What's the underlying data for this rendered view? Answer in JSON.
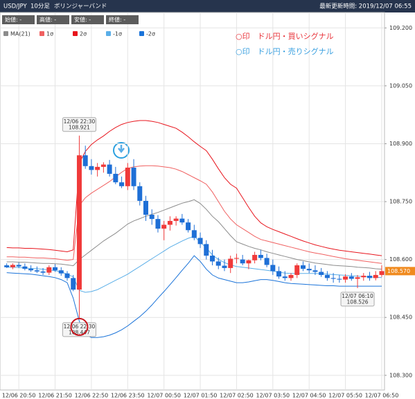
{
  "header": {
    "symbol": "USD/JPY",
    "interval": "10分足",
    "indicator": "ボリンジャーバンド",
    "updated": "最新更新時間: 2019/12/07 06:55"
  },
  "info": [
    "始値: -",
    "高値: -",
    "安値: -",
    "終値: -"
  ],
  "notes": [
    {
      "text": "○印　ドル円・買いシグナル",
      "color": "#e8333a"
    },
    {
      "text": "○印　ドル円・売りシグナル",
      "color": "#3aa0e0"
    }
  ],
  "chart_data": {
    "type": "candlestick",
    "categories": [
      null,
      null,
      "12/06 20:50",
      null,
      null,
      null,
      null,
      null,
      "12/06 21:50",
      null,
      null,
      null,
      null,
      null,
      "12/06 22:50",
      null,
      null,
      null,
      null,
      null,
      "12/06 23:50",
      null,
      null,
      null,
      null,
      null,
      "12/07 00:50",
      null,
      null,
      null,
      null,
      null,
      "12/07 01:50",
      null,
      null,
      null,
      null,
      null,
      "12/07 02:50",
      null,
      null,
      null,
      null,
      null,
      "12/07 03:50",
      null,
      null,
      null,
      null,
      null,
      "12/07 04:50",
      null,
      null,
      null,
      null,
      null,
      "12/07 05:50",
      null,
      null,
      null,
      null,
      null,
      "12/07 06:50"
    ],
    "open": [
      108.585,
      108.58,
      108.586,
      108.582,
      108.576,
      108.572,
      108.569,
      108.566,
      108.58,
      108.572,
      108.564,
      108.552,
      108.522,
      108.87,
      108.842,
      108.832,
      108.84,
      108.846,
      108.822,
      108.8,
      108.79,
      108.838,
      108.79,
      108.752,
      108.716,
      108.705,
      108.68,
      108.69,
      108.7,
      108.706,
      108.696,
      108.676,
      108.656,
      108.64,
      108.61,
      108.595,
      108.584,
      108.578,
      108.602,
      108.6,
      108.59,
      108.598,
      108.612,
      108.604,
      108.586,
      108.57,
      108.556,
      108.552,
      108.56,
      108.585,
      108.576,
      108.572,
      108.568,
      108.56,
      108.552,
      108.55,
      108.548,
      108.556,
      108.55,
      108.554,
      108.558,
      108.552,
      108.56
    ],
    "high": [
      108.59,
      108.59,
      108.592,
      108.59,
      108.585,
      108.582,
      108.578,
      108.585,
      108.588,
      108.58,
      108.57,
      108.56,
      108.921,
      108.895,
      108.86,
      108.85,
      108.852,
      108.858,
      108.84,
      108.815,
      108.85,
      108.86,
      108.8,
      108.765,
      108.73,
      108.715,
      108.7,
      108.712,
      108.712,
      108.718,
      108.705,
      108.69,
      108.67,
      108.65,
      108.625,
      108.605,
      108.6,
      108.61,
      108.615,
      108.612,
      108.6,
      108.62,
      108.625,
      108.615,
      108.6,
      108.582,
      108.57,
      108.565,
      108.59,
      108.595,
      108.59,
      108.585,
      108.578,
      108.57,
      108.565,
      108.56,
      108.562,
      108.565,
      108.56,
      108.565,
      108.568,
      108.57,
      108.585
    ],
    "low": [
      108.578,
      108.575,
      108.578,
      108.572,
      108.568,
      108.565,
      108.56,
      108.56,
      108.568,
      108.558,
      108.545,
      108.518,
      108.447,
      108.835,
      108.82,
      108.815,
      108.825,
      108.815,
      108.795,
      108.785,
      108.78,
      108.78,
      108.74,
      108.7,
      108.69,
      108.67,
      108.65,
      108.675,
      108.688,
      108.69,
      108.67,
      108.65,
      108.63,
      108.6,
      108.585,
      108.575,
      108.57,
      108.565,
      108.59,
      108.585,
      108.575,
      108.59,
      108.598,
      108.58,
      108.56,
      108.55,
      108.545,
      108.545,
      108.552,
      108.57,
      108.565,
      108.56,
      108.555,
      108.545,
      108.54,
      108.54,
      108.54,
      108.545,
      108.526,
      108.545,
      108.545,
      108.546,
      108.555
    ],
    "close": [
      108.58,
      108.586,
      108.582,
      108.576,
      108.572,
      108.569,
      108.566,
      108.58,
      108.572,
      108.564,
      108.552,
      108.522,
      108.87,
      108.842,
      108.832,
      108.84,
      108.846,
      108.822,
      108.8,
      108.79,
      108.838,
      108.79,
      108.752,
      108.716,
      108.705,
      108.68,
      108.69,
      108.7,
      108.706,
      108.696,
      108.676,
      108.656,
      108.64,
      108.61,
      108.595,
      108.584,
      108.578,
      108.602,
      108.604,
      108.59,
      108.598,
      108.612,
      108.604,
      108.586,
      108.57,
      108.556,
      108.552,
      108.56,
      108.585,
      108.576,
      108.572,
      108.568,
      108.56,
      108.552,
      108.55,
      108.548,
      108.556,
      108.55,
      108.554,
      108.558,
      108.552,
      108.56,
      108.57
    ],
    "up_color": "#f03a3a",
    "down_color": "#1e6fd6",
    "series": [
      {
        "name": "MA(21)",
        "color": "#8c8c8c",
        "values": [
          108.594,
          108.594,
          108.593,
          108.593,
          108.592,
          108.591,
          108.59,
          108.59,
          108.589,
          108.588,
          108.586,
          108.584,
          108.6,
          108.612,
          108.624,
          108.636,
          108.648,
          108.658,
          108.668,
          108.68,
          108.692,
          108.7,
          108.706,
          108.712,
          108.717,
          108.722,
          108.728,
          108.734,
          108.74,
          108.746,
          108.75,
          108.755,
          108.745,
          108.73,
          108.712,
          108.698,
          108.68,
          108.662,
          108.646,
          108.64,
          108.634,
          108.629,
          108.625,
          108.62,
          108.616,
          108.612,
          108.608,
          108.604,
          108.6,
          108.597,
          108.594,
          108.591,
          108.589,
          108.587,
          108.585,
          108.584,
          108.583,
          108.582,
          108.58,
          108.579,
          108.578,
          108.576,
          108.575
        ]
      },
      {
        "name": "1σ",
        "color": "#f06060",
        "values": [
          108.607,
          108.607,
          108.606,
          108.606,
          108.605,
          108.604,
          108.604,
          108.603,
          108.602,
          108.6,
          108.598,
          108.6,
          108.74,
          108.76,
          108.772,
          108.782,
          108.792,
          108.802,
          108.814,
          108.826,
          108.836,
          108.84,
          108.842,
          108.843,
          108.843,
          108.842,
          108.84,
          108.838,
          108.834,
          108.828,
          108.82,
          108.812,
          108.804,
          108.795,
          108.775,
          108.75,
          108.725,
          108.705,
          108.69,
          108.68,
          108.67,
          108.66,
          108.652,
          108.648,
          108.644,
          108.64,
          108.636,
          108.632,
          108.628,
          108.624,
          108.62,
          108.617,
          108.614,
          108.611,
          108.608,
          108.605,
          108.602,
          108.6,
          108.598,
          108.596,
          108.594,
          108.592,
          108.59
        ]
      },
      {
        "name": "2σ",
        "color": "#e8141c",
        "values": [
          108.631,
          108.63,
          108.63,
          108.629,
          108.629,
          108.628,
          108.627,
          108.626,
          108.624,
          108.622,
          108.62,
          108.625,
          108.85,
          108.88,
          108.898,
          108.91,
          108.92,
          108.932,
          108.942,
          108.95,
          108.955,
          108.958,
          108.96,
          108.96,
          108.958,
          108.955,
          108.95,
          108.945,
          108.94,
          108.93,
          108.918,
          108.905,
          108.893,
          108.882,
          108.86,
          108.835,
          108.812,
          108.795,
          108.785,
          108.76,
          108.735,
          108.712,
          108.695,
          108.685,
          108.678,
          108.672,
          108.666,
          108.66,
          108.654,
          108.648,
          108.643,
          108.638,
          108.634,
          108.63,
          108.627,
          108.624,
          108.622,
          108.62,
          108.618,
          108.616,
          108.614,
          108.612,
          108.61
        ]
      },
      {
        "name": "-1σ",
        "color": "#5aaee8",
        "values": [
          108.58,
          108.58,
          108.579,
          108.578,
          108.577,
          108.576,
          108.575,
          108.573,
          108.571,
          108.568,
          108.562,
          108.555,
          108.52,
          108.515,
          108.517,
          108.522,
          108.53,
          108.538,
          108.546,
          108.554,
          108.562,
          108.572,
          108.582,
          108.592,
          108.602,
          108.612,
          108.622,
          108.632,
          108.64,
          108.648,
          108.655,
          108.66,
          108.645,
          108.63,
          108.612,
          108.6,
          108.592,
          108.586,
          108.582,
          108.58,
          108.578,
          108.576,
          108.574,
          108.572,
          108.57,
          108.567,
          108.565,
          108.564,
          108.564,
          108.564,
          108.564,
          108.564,
          108.563,
          108.562,
          108.561,
          108.56,
          108.559,
          108.558,
          108.557,
          108.556,
          108.555,
          108.554,
          108.553
        ]
      },
      {
        "name": "-2σ",
        "color": "#1a73d9",
        "values": [
          108.566,
          108.565,
          108.564,
          108.563,
          108.562,
          108.56,
          108.558,
          108.556,
          108.553,
          108.548,
          108.54,
          108.5,
          108.44,
          108.405,
          108.398,
          108.398,
          108.4,
          108.404,
          108.41,
          108.418,
          108.428,
          108.44,
          108.452,
          108.466,
          108.482,
          108.5,
          108.517,
          108.535,
          108.553,
          108.572,
          108.59,
          108.61,
          108.595,
          108.575,
          108.56,
          108.552,
          108.548,
          108.544,
          108.54,
          108.54,
          108.542,
          108.545,
          108.548,
          108.548,
          108.546,
          108.543,
          108.54,
          108.538,
          108.537,
          108.536,
          108.535,
          108.534,
          108.533,
          108.532,
          108.532,
          108.531,
          108.531,
          108.531,
          108.531,
          108.531,
          108.531,
          108.531,
          108.531
        ]
      }
    ],
    "ylim": [
      108.262,
      109.24
    ],
    "yticks": [
      {
        "value": 108.3,
        "label": "108.300"
      },
      {
        "value": 108.45,
        "label": "108.450"
      },
      {
        "value": 108.6,
        "label": "108.600"
      },
      {
        "value": 108.75,
        "label": "108.750"
      },
      {
        "value": 108.9,
        "label": "108.900"
      },
      {
        "value": 109.05,
        "label": "109.050"
      },
      {
        "value": 109.2,
        "label": "109.200"
      }
    ],
    "grid": true,
    "annotations": [
      {
        "text": "12/06 22:30",
        "value": 108.921
      },
      {
        "text": "12/06 22:30",
        "value": 108.447
      },
      {
        "text": "12/07 06:10",
        "value": 108.526
      }
    ],
    "last_price": {
      "value": 108.57,
      "label": "108.570",
      "color": "#f08a1e"
    }
  }
}
